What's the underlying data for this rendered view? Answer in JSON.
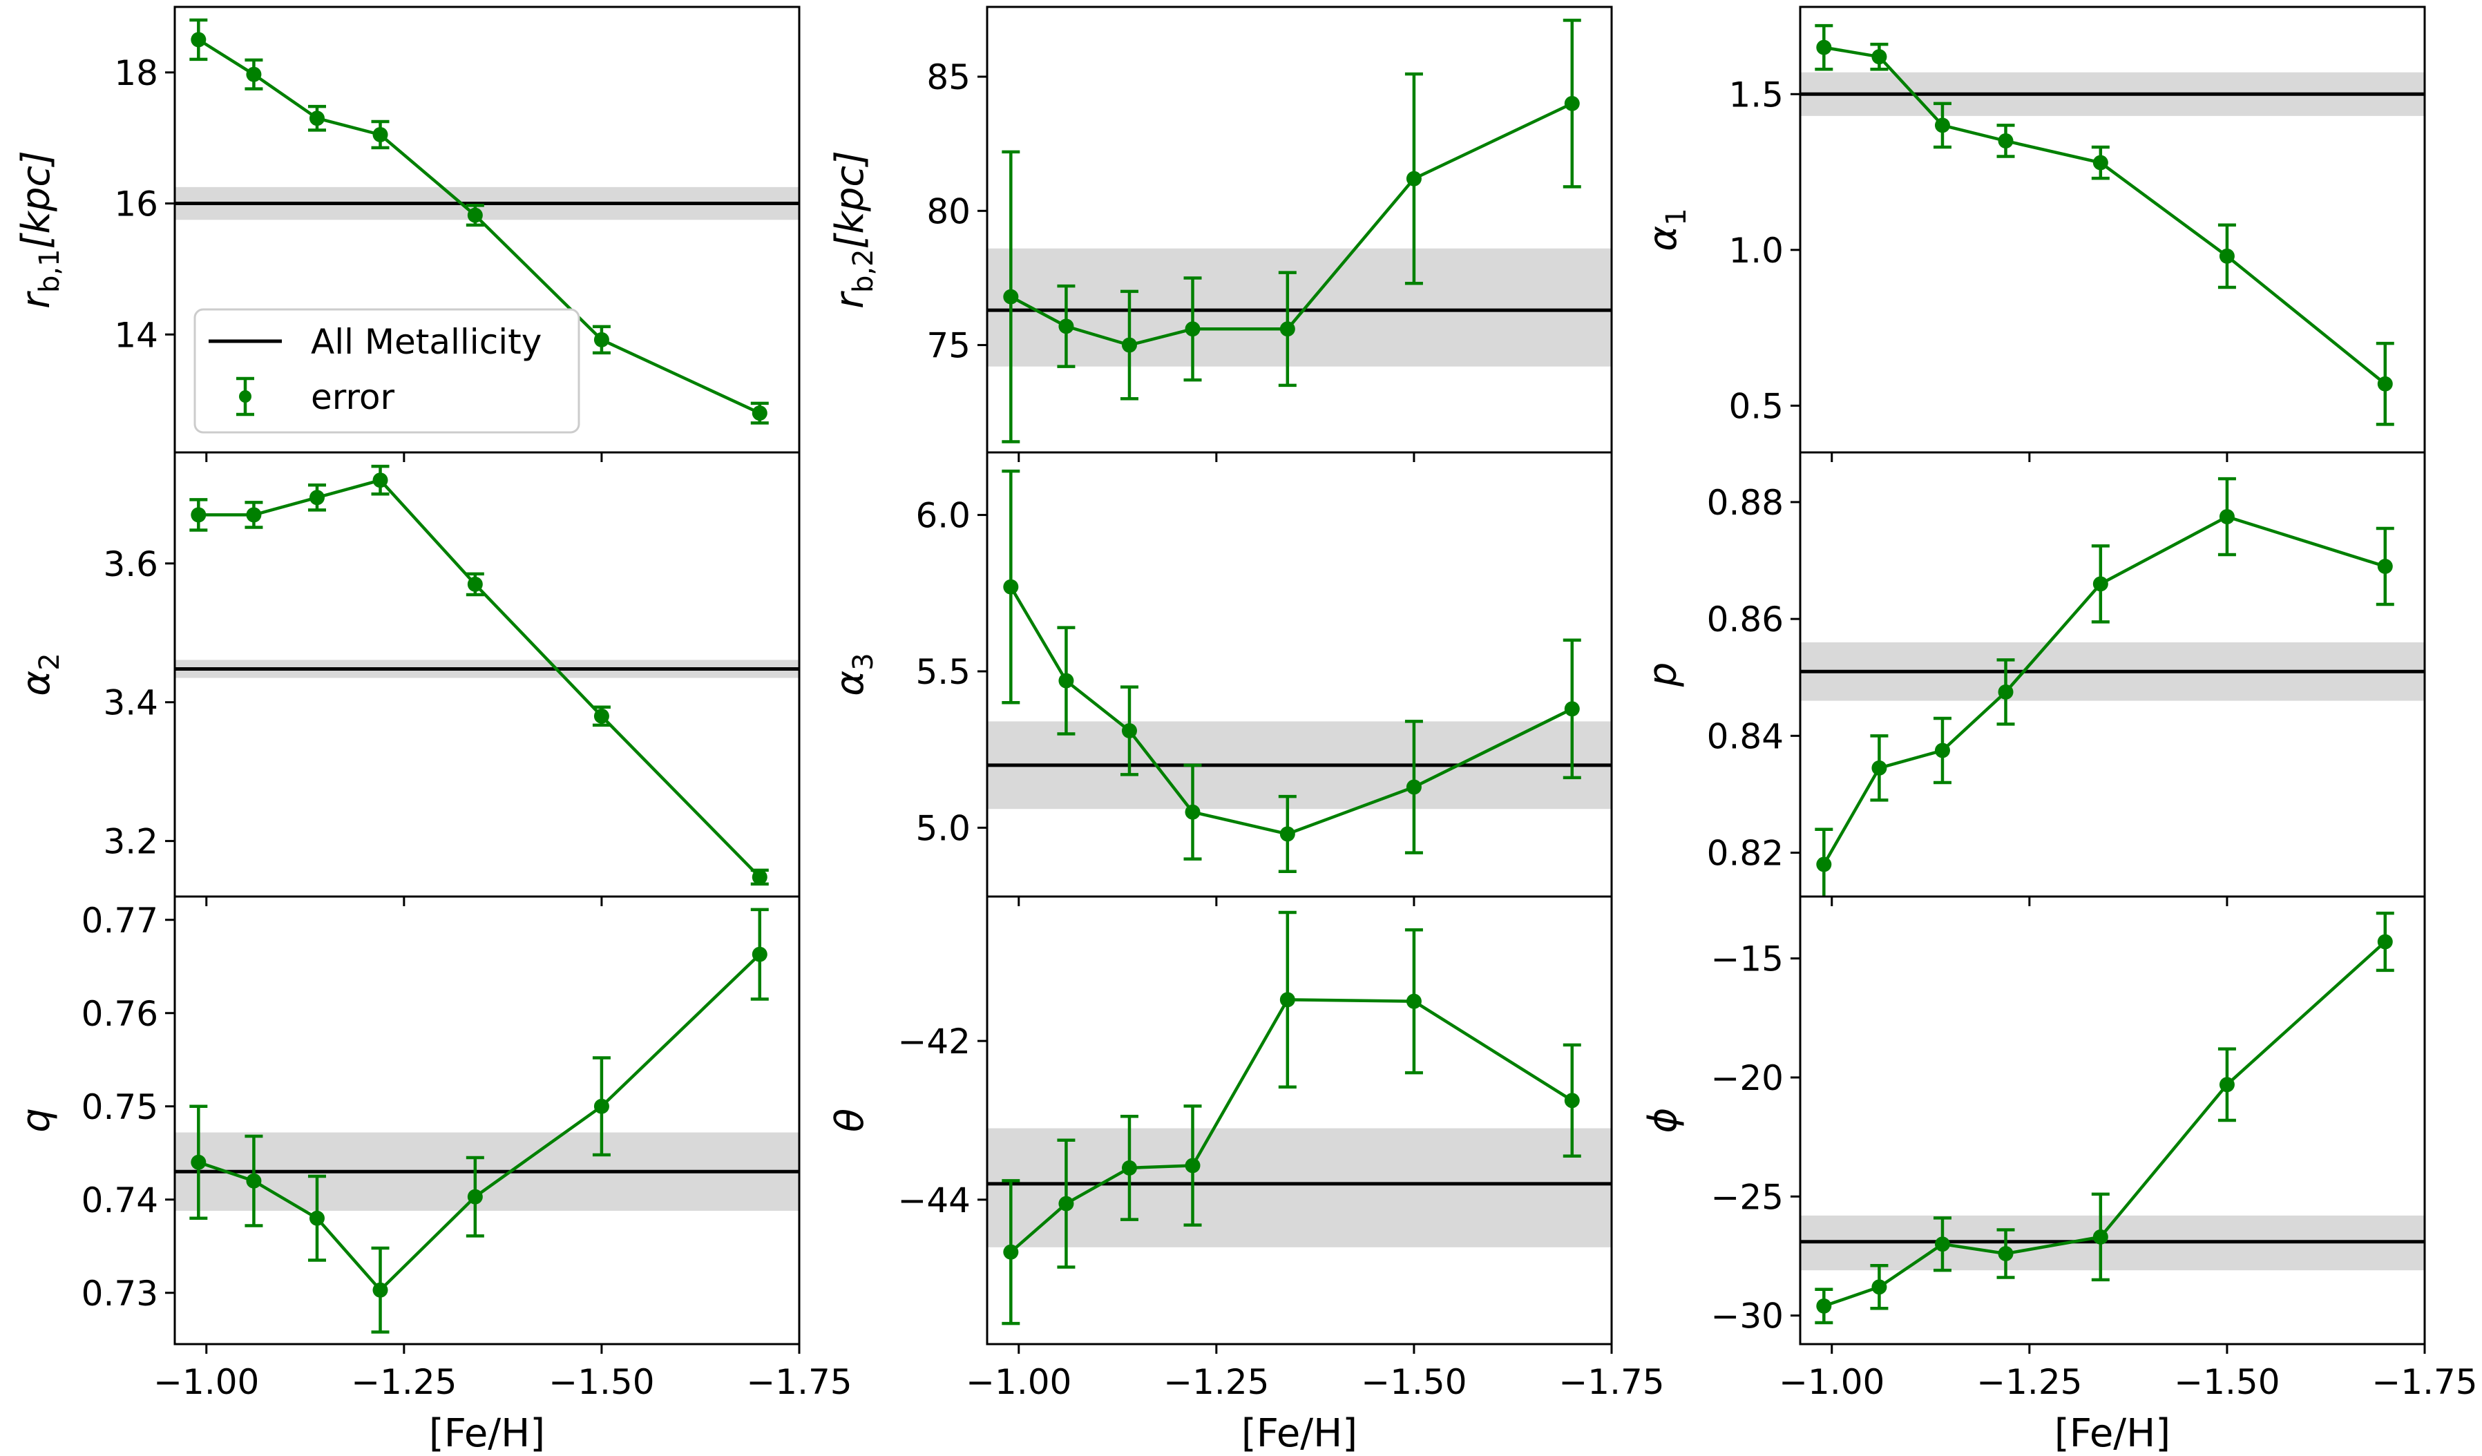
{
  "colors": {
    "series": "#008000",
    "reference_line": "#000000",
    "band": "#d9d9d9",
    "axes": "#000000",
    "background": "#ffffff"
  },
  "legend": {
    "location": "lower-left of top-left panel",
    "entries": [
      {
        "label": "All Metallicity",
        "kind": "line"
      },
      {
        "label": "error",
        "kind": "errorbar"
      }
    ]
  },
  "chart_data": [
    {
      "type": "line",
      "title": "",
      "xlabel": "",
      "ylabel": "r_{b,1} [kpc]",
      "ylabel_parts": {
        "main": "r",
        "sub": "b,1",
        "rest": "[kpc]"
      },
      "xlim": [
        -0.96,
        -1.75
      ],
      "ylim": [
        12.2,
        19.0
      ],
      "xticks": [
        "-1.00",
        "-1.25",
        "-1.50",
        "-1.75"
      ],
      "show_xticklabels": false,
      "yticks": [
        14,
        16,
        18
      ],
      "ytick_labels": [
        "14",
        "16",
        "18"
      ],
      "reference": {
        "label": "All Metallicity",
        "value": 16.0,
        "band": [
          15.75,
          16.25
        ]
      },
      "series": [
        {
          "name": "error",
          "x": [
            -0.99,
            -1.06,
            -1.14,
            -1.22,
            -1.34,
            -1.5,
            -1.7
          ],
          "y": [
            18.5,
            17.97,
            17.3,
            17.05,
            15.82,
            13.92,
            12.8
          ],
          "yerr": [
            0.3,
            0.22,
            0.18,
            0.2,
            0.15,
            0.2,
            0.15
          ]
        }
      ]
    },
    {
      "type": "line",
      "title": "",
      "xlabel": "",
      "ylabel": "r_{b,2} [kpc]",
      "ylabel_parts": {
        "main": "r",
        "sub": "b,2",
        "rest": "[kpc]"
      },
      "xlim": [
        -0.96,
        -1.75
      ],
      "ylim": [
        71.0,
        87.6
      ],
      "xticks": [
        "-1.00",
        "-1.25",
        "-1.50",
        "-1.75"
      ],
      "show_xticklabels": false,
      "yticks": [
        75,
        80,
        85
      ],
      "ytick_labels": [
        "75",
        "80",
        "85"
      ],
      "reference": {
        "label": "All Metallicity",
        "value": 76.3,
        "band": [
          74.2,
          78.6
        ]
      },
      "series": [
        {
          "name": "error",
          "x": [
            -0.99,
            -1.06,
            -1.14,
            -1.22,
            -1.34,
            -1.5,
            -1.7
          ],
          "y": [
            76.8,
            75.7,
            75.0,
            75.6,
            75.6,
            81.2,
            84.0
          ],
          "yerr": [
            5.4,
            1.5,
            2.0,
            1.9,
            2.1,
            3.9,
            3.1
          ]
        }
      ]
    },
    {
      "type": "line",
      "title": "",
      "xlabel": "",
      "ylabel": "α_1",
      "ylabel_parts": {
        "main": "α",
        "sub": "1",
        "rest": ""
      },
      "xlim": [
        -0.96,
        -1.75
      ],
      "ylim": [
        0.35,
        1.78
      ],
      "xticks": [
        "-1.00",
        "-1.25",
        "-1.50",
        "-1.75"
      ],
      "show_xticklabels": false,
      "yticks": [
        0.5,
        1.0,
        1.5
      ],
      "ytick_labels": [
        "0.5",
        "1.0",
        "1.5"
      ],
      "reference": {
        "label": "All Metallicity",
        "value": 1.5,
        "band": [
          1.43,
          1.57
        ]
      },
      "series": [
        {
          "name": "error",
          "x": [
            -0.99,
            -1.06,
            -1.14,
            -1.22,
            -1.34,
            -1.5,
            -1.7
          ],
          "y": [
            1.65,
            1.62,
            1.4,
            1.35,
            1.28,
            0.98,
            0.57
          ],
          "yerr": [
            0.07,
            0.04,
            0.07,
            0.05,
            0.05,
            0.1,
            0.13
          ]
        }
      ]
    },
    {
      "type": "line",
      "title": "",
      "xlabel": "",
      "ylabel": "α_2",
      "ylabel_parts": {
        "main": "α",
        "sub": "2",
        "rest": ""
      },
      "xlim": [
        -0.96,
        -1.75
      ],
      "ylim": [
        3.12,
        3.76
      ],
      "xticks": [
        "-1.00",
        "-1.25",
        "-1.50",
        "-1.75"
      ],
      "show_xticklabels": false,
      "yticks": [
        3.2,
        3.4,
        3.6
      ],
      "ytick_labels": [
        "3.2",
        "3.4",
        "3.6"
      ],
      "reference": {
        "label": "All Metallicity",
        "value": 3.448,
        "band": [
          3.435,
          3.461
        ]
      },
      "series": [
        {
          "name": "error",
          "x": [
            -0.99,
            -1.06,
            -1.14,
            -1.22,
            -1.34,
            -1.5,
            -1.7
          ],
          "y": [
            3.67,
            3.67,
            3.695,
            3.72,
            3.57,
            3.38,
            3.148
          ],
          "yerr": [
            0.022,
            0.018,
            0.018,
            0.02,
            0.015,
            0.013,
            0.01
          ]
        }
      ]
    },
    {
      "type": "line",
      "title": "",
      "xlabel": "",
      "ylabel": "α_3",
      "ylabel_parts": {
        "main": "α",
        "sub": "3",
        "rest": ""
      },
      "xlim": [
        -0.96,
        -1.75
      ],
      "ylim": [
        4.78,
        6.2
      ],
      "xticks": [
        "-1.00",
        "-1.25",
        "-1.50",
        "-1.75"
      ],
      "show_xticklabels": false,
      "yticks": [
        5.0,
        5.5,
        6.0
      ],
      "ytick_labels": [
        "5.0",
        "5.5",
        "6.0"
      ],
      "reference": {
        "label": "All Metallicity",
        "value": 5.2,
        "band": [
          5.06,
          5.34
        ]
      },
      "series": [
        {
          "name": "error",
          "x": [
            -0.99,
            -1.06,
            -1.14,
            -1.22,
            -1.34,
            -1.5,
            -1.7
          ],
          "y": [
            5.77,
            5.47,
            5.31,
            5.05,
            4.98,
            5.13,
            5.38
          ],
          "yerr": [
            0.37,
            0.17,
            0.14,
            0.15,
            0.12,
            0.21,
            0.22
          ]
        }
      ]
    },
    {
      "type": "line",
      "title": "",
      "xlabel": "",
      "ylabel": "p",
      "ylabel_parts": {
        "main": "p",
        "sub": "",
        "rest": ""
      },
      "xlim": [
        -0.96,
        -1.75
      ],
      "ylim": [
        0.8125,
        0.8885
      ],
      "xticks": [
        "-1.00",
        "-1.25",
        "-1.50",
        "-1.75"
      ],
      "show_xticklabels": false,
      "yticks": [
        0.82,
        0.84,
        0.86,
        0.88
      ],
      "ytick_labels": [
        "0.82",
        "0.84",
        "0.86",
        "0.88"
      ],
      "reference": {
        "label": "All Metallicity",
        "value": 0.851,
        "band": [
          0.846,
          0.856
        ]
      },
      "series": [
        {
          "name": "error",
          "x": [
            -0.99,
            -1.06,
            -1.14,
            -1.22,
            -1.34,
            -1.5,
            -1.7
          ],
          "y": [
            0.818,
            0.8345,
            0.8375,
            0.8475,
            0.866,
            0.8775,
            0.869
          ],
          "yerr": [
            0.006,
            0.0055,
            0.0055,
            0.0055,
            0.0065,
            0.0065,
            0.0065
          ]
        }
      ]
    },
    {
      "type": "line",
      "title": "",
      "xlabel": "[Fe/H]",
      "ylabel": "q",
      "ylabel_parts": {
        "main": "q",
        "sub": "",
        "rest": ""
      },
      "xlim": [
        -0.96,
        -1.75
      ],
      "ylim": [
        0.7245,
        0.7725
      ],
      "xticks": [
        "-1.00",
        "-1.25",
        "-1.50",
        "-1.75"
      ],
      "show_xticklabels": true,
      "yticks": [
        0.73,
        0.74,
        0.75,
        0.76,
        0.77
      ],
      "ytick_labels": [
        "0.73",
        "0.74",
        "0.75",
        "0.76",
        "0.77"
      ],
      "reference": {
        "label": "All Metallicity",
        "value": 0.743,
        "band": [
          0.7388,
          0.7472
        ]
      },
      "series": [
        {
          "name": "error",
          "x": [
            -0.99,
            -1.06,
            -1.14,
            -1.22,
            -1.34,
            -1.5,
            -1.7
          ],
          "y": [
            0.744,
            0.742,
            0.738,
            0.7303,
            0.7403,
            0.75,
            0.7663
          ],
          "yerr": [
            0.006,
            0.0048,
            0.0045,
            0.0045,
            0.0042,
            0.0052,
            0.0048
          ]
        }
      ]
    },
    {
      "type": "line",
      "title": "",
      "xlabel": "[Fe/H]",
      "ylabel": "θ",
      "ylabel_parts": {
        "main": "θ",
        "sub": "",
        "rest": ""
      },
      "xlim": [
        -0.96,
        -1.75
      ],
      "ylim": [
        -45.82,
        -40.18
      ],
      "xticks": [
        "-1.00",
        "-1.25",
        "-1.50",
        "-1.75"
      ],
      "show_xticklabels": true,
      "yticks": [
        -44,
        -42
      ],
      "ytick_labels": [
        "−44",
        "−42"
      ],
      "reference": {
        "label": "All Metallicity",
        "value": -43.8,
        "band": [
          -44.6,
          -43.1
        ]
      },
      "series": [
        {
          "name": "error",
          "x": [
            -0.99,
            -1.06,
            -1.14,
            -1.22,
            -1.34,
            -1.5,
            -1.7
          ],
          "y": [
            -44.66,
            -44.05,
            -43.6,
            -43.57,
            -41.48,
            -41.5,
            -42.75
          ],
          "yerr": [
            0.9,
            0.8,
            0.65,
            0.75,
            1.1,
            0.9,
            0.7
          ]
        }
      ]
    },
    {
      "type": "line",
      "title": "",
      "xlabel": "[Fe/H]",
      "ylabel": "ϕ",
      "ylabel_parts": {
        "main": "ϕ",
        "sub": "",
        "rest": ""
      },
      "xlim": [
        -0.96,
        -1.75
      ],
      "ylim": [
        -31.2,
        -12.4
      ],
      "xticks": [
        "-1.00",
        "-1.25",
        "-1.50",
        "-1.75"
      ],
      "show_xticklabels": true,
      "yticks": [
        -30,
        -25,
        -20,
        -15
      ],
      "ytick_labels": [
        "−30",
        "−25",
        "−20",
        "−15"
      ],
      "reference": {
        "label": "All Metallicity",
        "value": -26.9,
        "band": [
          -28.1,
          -25.8
        ]
      },
      "series": [
        {
          "name": "error",
          "x": [
            -0.99,
            -1.06,
            -1.14,
            -1.22,
            -1.34,
            -1.5,
            -1.7
          ],
          "y": [
            -29.6,
            -28.8,
            -27.0,
            -27.4,
            -26.7,
            -20.3,
            -14.3
          ],
          "yerr": [
            0.7,
            0.9,
            1.1,
            1.0,
            1.8,
            1.5,
            1.2
          ]
        }
      ]
    }
  ]
}
